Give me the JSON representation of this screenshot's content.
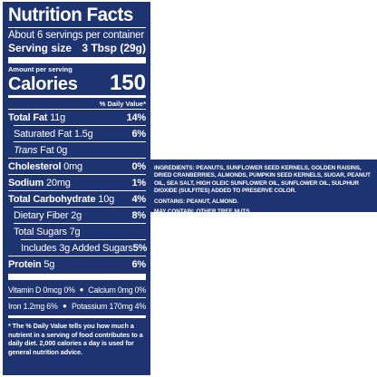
{
  "label": {
    "title": "Nutrition Facts",
    "servings_per_container": "About 6 servings per container",
    "serving_size_label": "Serving size",
    "serving_size_value": "3 Tbsp (29g)",
    "amount_per_serving": "Amount per serving",
    "calories_label": "Calories",
    "calories_value": "150",
    "daily_value_header": "% Daily Value*",
    "rows": {
      "total_fat": {
        "name": "Total Fat",
        "amount": "11g",
        "dv": "14%"
      },
      "saturated_fat": {
        "name": "Saturated Fat 1.5g",
        "dv": "6%"
      },
      "trans_fat_prefix": "Trans",
      "trans_fat_rest": " Fat 0g",
      "cholesterol": {
        "name": "Cholesterol",
        "amount": "0mg",
        "dv": "0%"
      },
      "sodium": {
        "name": "Sodium",
        "amount": "20mg",
        "dv": "1%"
      },
      "total_carbohydrate": {
        "name": "Total Carbohydrate",
        "amount": "10g",
        "dv": "4%"
      },
      "dietary_fiber": {
        "name": "Dietary Fiber 2g",
        "dv": "8%"
      },
      "total_sugars": {
        "name": "Total Sugars 7g"
      },
      "added_sugars": {
        "name": "Includes 3g Added Sugars",
        "dv": "5%"
      },
      "protein": {
        "name": "Protein",
        "amount": "5g",
        "dv": "6%"
      }
    },
    "vitamins": [
      {
        "left": "Vitamin D 0mcg 0%",
        "right": "Calcium 0mg 0%"
      },
      {
        "left": "Iron 1.2mg 6%",
        "right": "Potassium 170mg 4%"
      }
    ],
    "footnote": "* The % Daily Value tells you how much a nutrient in a serving of food contributes to a daily diet. 2,000 calories a day is used for general nutrition advice."
  },
  "ingredients_panel": {
    "ingredients": "INGREDIENTS: PEANUTS, SUNFLOWER SEED KERNELS, GOLDEN RAISINS, DRIED CRANBERRIES, ALMONDS, PUMPKIN SEED KERNELS, SUGAR, PEANUT OIL, SEA SALT, HIGH OLEIC SUNFLOWER OIL, SUNFLOWER OIL, SULPHUR DIOXIDE (SULFITES) ADDED TO PRESERVE COLOR.",
    "contains": "CONTAINS: PEANUT, ALMOND.",
    "may_contain": "MAY CONTAIN: OTHER TREE NUTS."
  },
  "colors": {
    "panel_background": "#1e3471",
    "text": "#ffffff"
  }
}
